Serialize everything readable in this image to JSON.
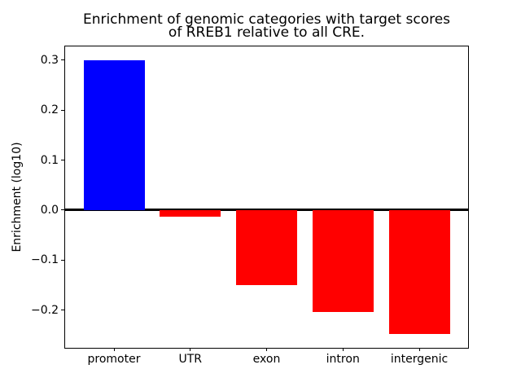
{
  "figure": {
    "background": "#ffffff",
    "axis_color": "#000000"
  },
  "chart_data": {
    "type": "bar",
    "title": "Enrichment of genomic categories with target scores\nof RREB1 relative to all CRE.",
    "title_lines": [
      "Enrichment of genomic categories with target scores",
      "of RREB1 relative to all CRE."
    ],
    "xlabel": "",
    "ylabel": "Enrichment (log10)",
    "categories": [
      "promoter",
      "UTR",
      "exon",
      "intron",
      "intergenic"
    ],
    "values": [
      0.3,
      -0.013,
      -0.15,
      -0.203,
      -0.247
    ],
    "bar_colors": [
      "#0000ff",
      "#ff0000",
      "#ff0000",
      "#ff0000",
      "#ff0000"
    ],
    "yticks": {
      "values": [
        0.3,
        0.2,
        0.1,
        0.0,
        -0.1,
        -0.2
      ],
      "labels": [
        "0.3",
        "0.2",
        "0.1",
        "0.0",
        "−0.1",
        "−0.2"
      ]
    },
    "ylim": [
      -0.2755,
      0.3275
    ],
    "xlim": [
      -0.64,
      4.64
    ],
    "bar_width": 0.8,
    "zero_line": true,
    "grid": false,
    "legend": null
  }
}
